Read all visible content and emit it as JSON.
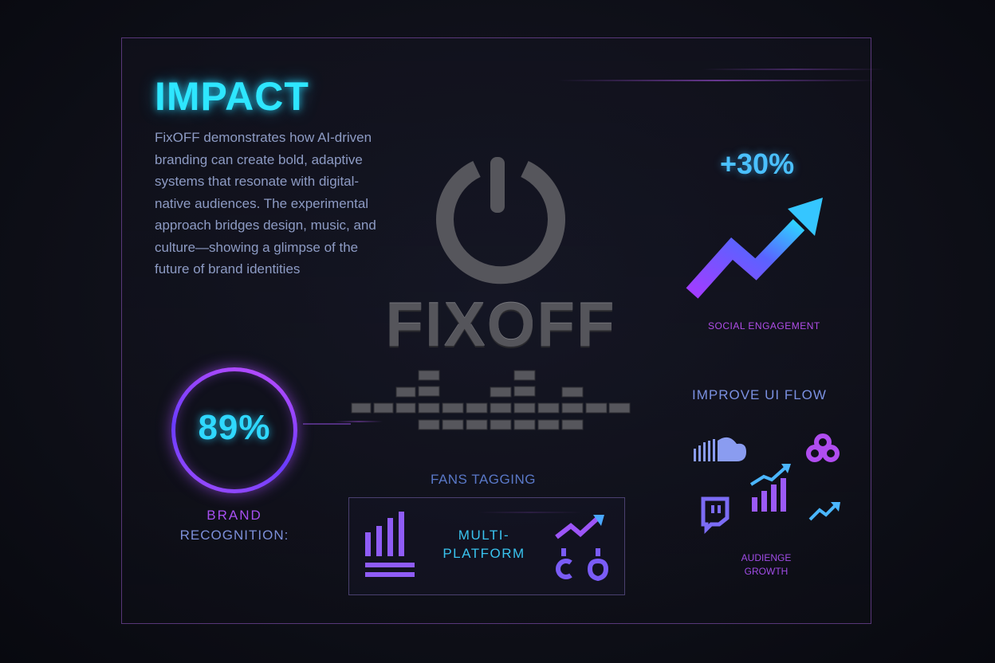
{
  "heading": "IMPACT",
  "description": "FixOFF demonstrates how AI-driven branding can create bold, adaptive systems that resonate with digital-native audiences. The experimental approach bridges design, music, and culture—showing a glimpse of the future of brand identities",
  "logo": {
    "wordmark": "FIXOFF",
    "icon": "power-icon"
  },
  "brand_recognition": {
    "value": "89%",
    "label_top": "BRAND",
    "label_bottom": "RECOGNITION:"
  },
  "social_engagement": {
    "value": "+30%",
    "label": "SOCIAL ENGAGEMENT"
  },
  "improve_ui": {
    "label": "IMPROVE UI FLOW",
    "icons": [
      "soundcloud-icon",
      "cluster-icon",
      "growth-chart-icon",
      "twitch-icon",
      "trend-arrow-icon"
    ]
  },
  "audience": {
    "line1": "AUDIENGE",
    "line2": "GROWTH"
  },
  "fans_tagging": {
    "label": "FANS TAGGING",
    "center_line1": "MULTI-",
    "center_line2": "PLATFORM"
  },
  "colors": {
    "cyan": "#2ee6ff",
    "purple": "#a64ff0",
    "blue": "#4ac0ff",
    "bg": "#0b0c14"
  }
}
